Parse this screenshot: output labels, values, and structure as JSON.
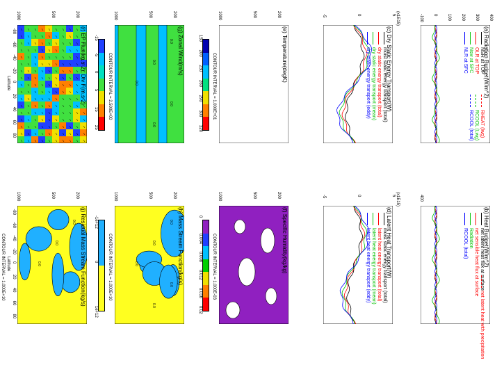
{
  "chart_data": [
    {
      "type": "line",
      "title": "(a) Radiation Budget(W/m^2)",
      "yticks": [
        "-100",
        "0",
        "100",
        "200",
        "300",
        "400"
      ],
      "legend_left": [
        "NSR at TOP",
        "OLR at TOP",
        "Nsw at SFC",
        "NLR at SFC"
      ],
      "legend_right": [
        "RHEAT (lwg)",
        "RCOOL (Lwg)",
        "RCOOL (total)"
      ],
      "colors": [
        "#000000",
        "#ff0000",
        "#00c000",
        "#0000ff"
      ]
    },
    {
      "type": "line",
      "title": "(b) Heat Budget(W/m^2)",
      "yticks": [
        "400"
      ],
      "legend_left": [
        "net latent heat flux at surface",
        "net sensible heat flux at surface",
        "Radiation",
        "RCOOL (total)"
      ],
      "legend_right": [
        "net latent heat with precipitation"
      ],
      "colors": [
        "#000000",
        "#ff0000",
        "#00c000",
        "#0000ff"
      ]
    },
    {
      "type": "line",
      "title": "(c) Dry Static Energy Transport(W)",
      "scale": "(x1E15)",
      "yticks": [
        "-5",
        "0",
        "5"
      ],
      "legend": [
        "moist static energy transport (total)",
        "dry static energy transport (total)",
        "dry static energy transport (mean)",
        "dry static energy transport (eddy)"
      ],
      "colors": [
        "#000000",
        "#ff0000",
        "#00c000",
        "#0000ff"
      ]
    },
    {
      "type": "line",
      "title": "(d) Latent Heat Transport(W)",
      "scale": "(x1E15)",
      "yticks": [
        "-5",
        "0",
        "5"
      ],
      "legend": [
        "moist static energy transport (total)",
        "latent heat energy transport (total)",
        "latent heat energy transport (mean)",
        "latent heat energy transport (eddy)"
      ],
      "colors": [
        "#000000",
        "#ff0000",
        "#00c000",
        "#0000ff"
      ]
    },
    {
      "type": "heatmap",
      "title": "(e) Temperature(degK)",
      "yticks": [
        "1000",
        "500",
        "200"
      ],
      "contour_interval": "CONTOUR INTERVAL = 1.000E+01",
      "colorbar": [
        "150",
        "200",
        "230",
        "260",
        "290",
        "300",
        "320"
      ],
      "colors": [
        "#0000b0",
        "#0060ff",
        "#00c0ff",
        "#00e080",
        "#f0e000",
        "#ff8000",
        "#ff0000"
      ]
    },
    {
      "type": "heatmap",
      "title": "(f) Specific Humidity(kg/kg)",
      "yticks": [
        "1000",
        "500",
        "200"
      ],
      "contour_interval": "CONTOUR INTERVAL = 1.000E-03",
      "colorbar": [
        "0",
        "0.004",
        "0.008",
        "0.012",
        "0.016",
        "0.02"
      ],
      "colors": [
        "#9020c0",
        "#2040ff",
        "#00c0ff",
        "#00d000",
        "#f0e000",
        "#ff8000",
        "#ff0000"
      ]
    },
    {
      "type": "heatmap",
      "title": "(g) Zonal Wind(m/s)",
      "yticks": [
        "1000",
        "500",
        "200"
      ],
      "contour_interval": "CONTOUR INTERVAL = 2.500E+00",
      "contour_labels": [
        "0.0",
        "0.0",
        "0.0",
        "0.0",
        "0.0"
      ],
      "colorbar": [
        "-15",
        "-5",
        "0",
        "5",
        "15",
        "25"
      ],
      "colors": [
        "#2040ff",
        "#00c0ff",
        "#00e0c0",
        "#40e040",
        "#f0e000",
        "#ff8000",
        "#ff0000"
      ]
    },
    {
      "type": "heatmap",
      "title": "(h) Mass Stream Function(kg/s)",
      "yticks": [
        "1000",
        "500",
        "200"
      ],
      "contour_interval": "CONTOUR INTERVAL = 1.000E+10",
      "contour_labels": [
        "0.0",
        "0.0",
        "0.0",
        "0.0",
        "0.0"
      ],
      "colorbar": [
        "-1e+12",
        "0",
        "1e+12"
      ],
      "colors": [
        "#20b0ff",
        "#ffff20"
      ]
    },
    {
      "type": "heatmap",
      "title": "(i) EP Flux(kg.s-2), Div F(m.s-2)",
      "yticks": [
        "1000",
        "500",
        "200"
      ],
      "xlabel": "Latitude",
      "xticks": [
        "-80",
        "-60",
        "-40",
        "-20",
        "0",
        "20",
        "40",
        "60",
        "80"
      ],
      "colorbar": [
        "-5e-5",
        "-1e-5",
        "0",
        "1e-5",
        "5e-5"
      ],
      "scale_label": "6.3e+06",
      "colors": [
        "#2040ff",
        "#00c0ff",
        "#40e040",
        "#f0e000",
        "#ff8000",
        "#ff0000"
      ]
    },
    {
      "type": "heatmap",
      "title": "(j) Residual Mass Stream Function(kg/s)",
      "yticks": [
        "1000",
        "500",
        "200"
      ],
      "xlabel": "Latitude",
      "xticks": [
        "-80",
        "-60",
        "-40",
        "-20",
        "0",
        "20",
        "40",
        "60",
        "80"
      ],
      "contour_interval": "CONTOUR INTERVAL = 1.000E+10",
      "contour_labels": [
        "0.0",
        "0.0",
        "0.0"
      ],
      "colorbar": [
        "-1e+12",
        "0",
        "1e+12"
      ],
      "colors": [
        "#20b0ff",
        "#ffff20"
      ]
    }
  ]
}
